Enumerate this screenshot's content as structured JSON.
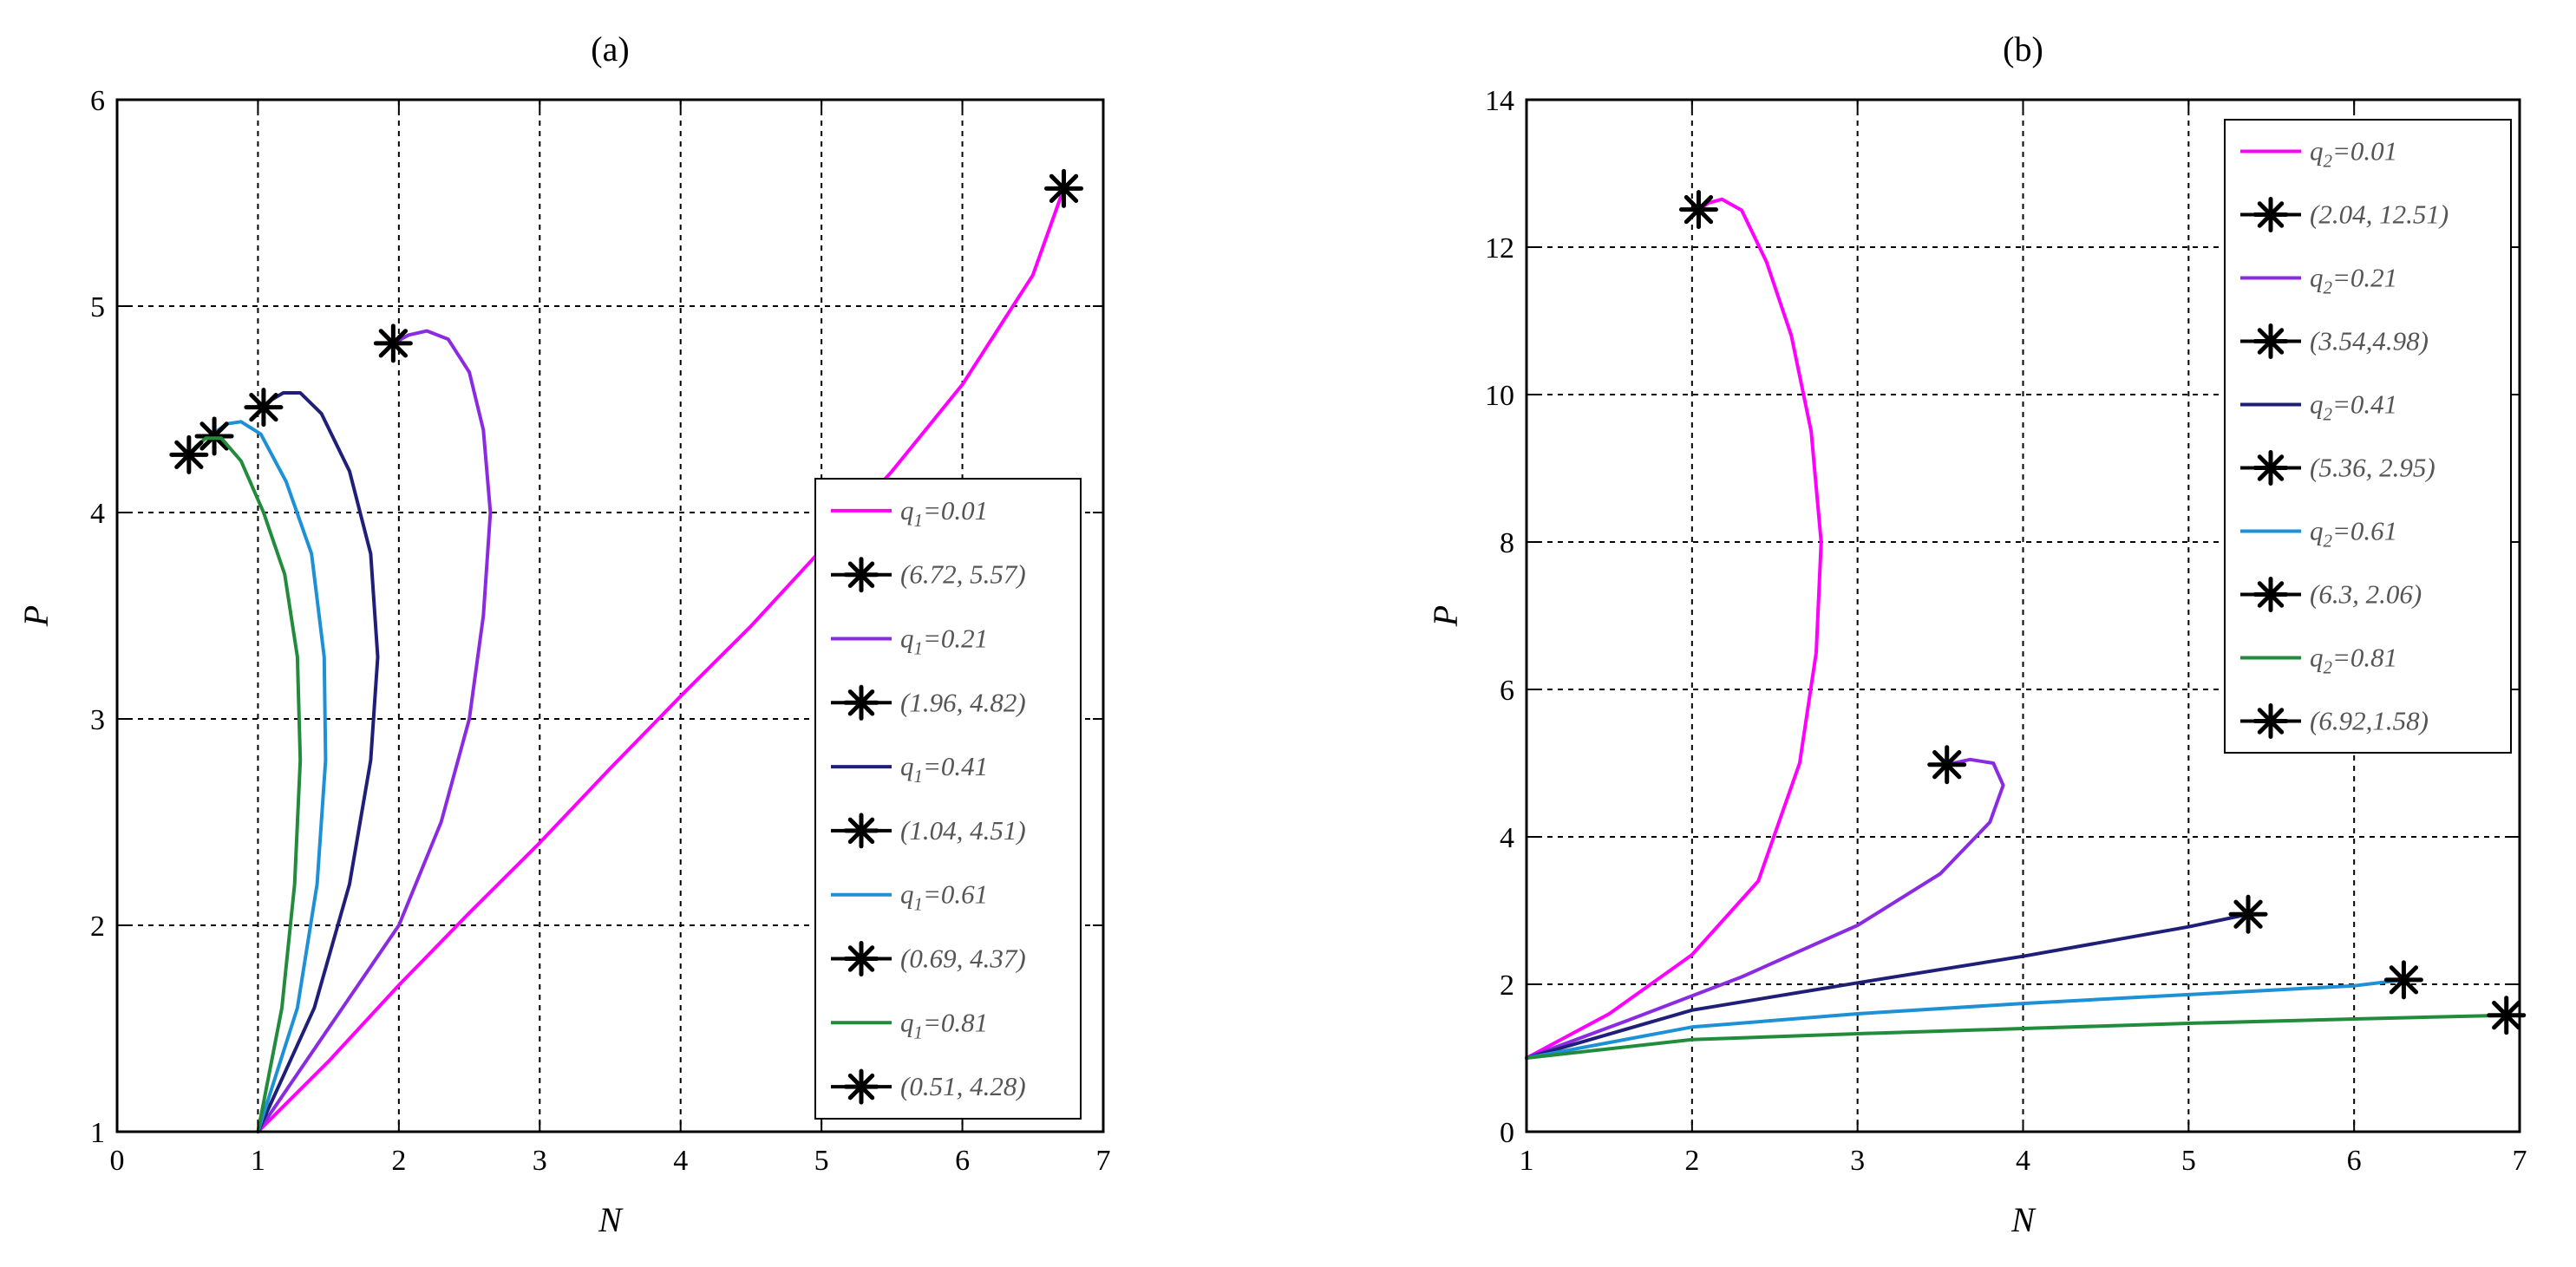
{
  "chart_data": [
    {
      "type": "line",
      "title": "(a)",
      "xlabel": "N",
      "ylabel": "P",
      "xlim": [
        0,
        7
      ],
      "ylim": [
        1,
        6
      ],
      "xticks": [
        "0",
        "1",
        "2",
        "3",
        "4",
        "5",
        "6",
        "7"
      ],
      "yticks": [
        "1",
        "2",
        "3",
        "4",
        "5",
        "6"
      ],
      "grid": true,
      "legend_position": "center-right",
      "legend_var": "q",
      "legend_sub": "1",
      "series": [
        {
          "q": "0.01",
          "color": "#ff00ff",
          "endpoint": [
            6.72,
            5.57
          ],
          "marker_label": "(6.72, 5.57)",
          "x": [
            1.0,
            1.5,
            2.0,
            2.5,
            3.0,
            3.5,
            4.0,
            4.5,
            5.0,
            5.5,
            6.0,
            6.5,
            6.72
          ],
          "y": [
            1.0,
            1.34,
            1.71,
            2.06,
            2.4,
            2.76,
            3.11,
            3.45,
            3.82,
            4.2,
            4.62,
            5.15,
            5.57
          ]
        },
        {
          "q": "0.21",
          "color": "#8a2be2",
          "endpoint": [
            1.96,
            4.82
          ],
          "marker_label": "(1.96, 4.82)",
          "x": [
            1.0,
            1.5,
            2.0,
            2.3,
            2.5,
            2.6,
            2.65,
            2.6,
            2.5,
            2.35,
            2.2,
            2.07,
            1.96
          ],
          "y": [
            1.0,
            1.5,
            2.0,
            2.5,
            3.0,
            3.5,
            4.0,
            4.4,
            4.68,
            4.84,
            4.88,
            4.86,
            4.82
          ]
        },
        {
          "q": "0.41",
          "color": "#1f1f7a",
          "endpoint": [
            1.04,
            4.51
          ],
          "marker_label": "(1.04, 4.51)",
          "x": [
            1.0,
            1.4,
            1.65,
            1.8,
            1.85,
            1.8,
            1.65,
            1.45,
            1.3,
            1.18,
            1.08,
            1.04
          ],
          "y": [
            1.0,
            1.6,
            2.2,
            2.8,
            3.3,
            3.8,
            4.2,
            4.48,
            4.58,
            4.58,
            4.54,
            4.51
          ]
        },
        {
          "q": "0.61",
          "color": "#1e90d6",
          "endpoint": [
            0.69,
            4.37
          ],
          "marker_label": "(0.69, 4.37)",
          "x": [
            1.0,
            1.28,
            1.42,
            1.48,
            1.47,
            1.38,
            1.2,
            1.02,
            0.88,
            0.78,
            0.72,
            0.69
          ],
          "y": [
            1.0,
            1.6,
            2.2,
            2.8,
            3.3,
            3.8,
            4.15,
            4.38,
            4.44,
            4.43,
            4.4,
            4.37
          ]
        },
        {
          "q": "0.81",
          "color": "#228b3c",
          "endpoint": [
            0.51,
            4.28
          ],
          "marker_label": "(0.51, 4.28)",
          "x": [
            1.0,
            1.17,
            1.26,
            1.3,
            1.28,
            1.19,
            1.04,
            0.88,
            0.74,
            0.63,
            0.56,
            0.51
          ],
          "y": [
            1.0,
            1.6,
            2.2,
            2.8,
            3.3,
            3.7,
            4.0,
            4.25,
            4.36,
            4.36,
            4.32,
            4.28
          ]
        }
      ]
    },
    {
      "type": "line",
      "title": "(b)",
      "xlabel": "N",
      "ylabel": "P",
      "xlim": [
        1,
        7
      ],
      "ylim": [
        0,
        14
      ],
      "xticks": [
        "1",
        "2",
        "3",
        "4",
        "5",
        "6",
        "7"
      ],
      "yticks": [
        "0",
        "2",
        "4",
        "6",
        "8",
        "10",
        "12",
        "14"
      ],
      "grid": true,
      "legend_position": "top-right",
      "legend_var": "q",
      "legend_sub": "2",
      "series": [
        {
          "q": "0.01",
          "color": "#ff00ff",
          "endpoint": [
            2.04,
            12.51
          ],
          "marker_label": "(2.04, 12.51)",
          "x": [
            1.0,
            1.5,
            2.0,
            2.4,
            2.65,
            2.75,
            2.78,
            2.72,
            2.6,
            2.45,
            2.3,
            2.18,
            2.1,
            2.04
          ],
          "y": [
            1.0,
            1.6,
            2.4,
            3.4,
            5.0,
            6.5,
            8.0,
            9.5,
            10.8,
            11.8,
            12.5,
            12.65,
            12.6,
            12.51
          ]
        },
        {
          "q": "0.21",
          "color": "#8a2be2",
          "endpoint": [
            3.54,
            4.98
          ],
          "marker_label": "(3.54,4.98)",
          "x": [
            1.0,
            1.6,
            2.3,
            3.0,
            3.5,
            3.8,
            3.88,
            3.82,
            3.68,
            3.54
          ],
          "y": [
            1.0,
            1.5,
            2.1,
            2.8,
            3.5,
            4.2,
            4.7,
            5.0,
            5.05,
            4.98
          ]
        },
        {
          "q": "0.41",
          "color": "#1f1f7a",
          "endpoint": [
            5.36,
            2.95
          ],
          "marker_label": "(5.36, 2.95)",
          "x": [
            1.0,
            2.0,
            3.0,
            4.0,
            5.0,
            5.36
          ],
          "y": [
            1.0,
            1.65,
            2.02,
            2.38,
            2.78,
            2.95
          ]
        },
        {
          "q": "0.61",
          "color": "#1e90d6",
          "endpoint": [
            6.3,
            2.06
          ],
          "marker_label": "(6.3, 2.06)",
          "x": [
            1.0,
            2.0,
            3.0,
            4.0,
            5.0,
            6.0,
            6.3
          ],
          "y": [
            1.0,
            1.42,
            1.6,
            1.74,
            1.86,
            1.98,
            2.06
          ]
        },
        {
          "q": "0.81",
          "color": "#228b3c",
          "endpoint": [
            6.92,
            1.58
          ],
          "marker_label": "(6.92,1.58)",
          "x": [
            1.0,
            2.0,
            3.0,
            4.0,
            5.0,
            6.0,
            6.92
          ],
          "y": [
            1.0,
            1.25,
            1.33,
            1.4,
            1.47,
            1.53,
            1.58
          ]
        }
      ]
    }
  ]
}
